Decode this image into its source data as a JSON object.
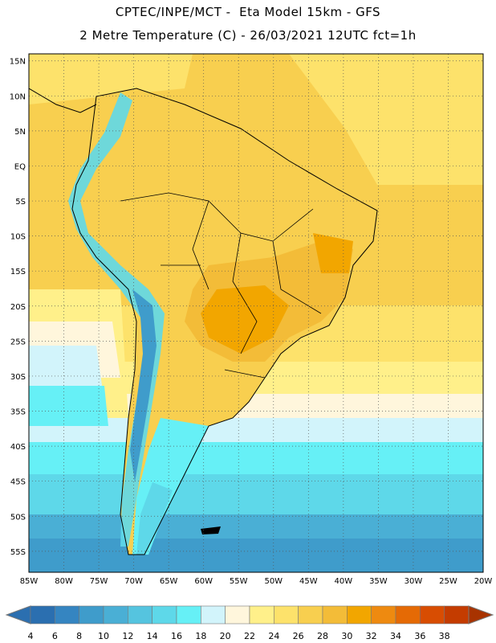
{
  "header": {
    "line1": "CPTEC/INPE/MCT -  Eta Model 15km - GFS",
    "line2": "2 Metre Temperature (C) - 26/03/2021 12UTC fct=1h"
  },
  "map": {
    "lon_range": [
      -85,
      -20
    ],
    "lat_range": [
      -58,
      16
    ],
    "lat_labels": [
      "15N",
      "10N",
      "5N",
      "EQ",
      "5S",
      "10S",
      "15S",
      "20S",
      "25S",
      "30S",
      "35S",
      "40S",
      "45S",
      "50S",
      "55S"
    ],
    "lat_values": [
      15,
      10,
      5,
      0,
      -5,
      -10,
      -15,
      -20,
      -25,
      -30,
      -35,
      -40,
      -45,
      -50,
      -55
    ],
    "lon_labels": [
      "85W",
      "80W",
      "75W",
      "70W",
      "65W",
      "60W",
      "55W",
      "50W",
      "45W",
      "40W",
      "35W",
      "30W",
      "25W",
      "20W"
    ],
    "lon_values": [
      -85,
      -80,
      -75,
      -70,
      -65,
      -60,
      -55,
      -50,
      -45,
      -40,
      -35,
      -30,
      -25,
      -20
    ],
    "grid": "dotted"
  },
  "legend": {
    "labels": [
      "4",
      "6",
      "8",
      "10",
      "12",
      "14",
      "16",
      "18",
      "20",
      "22",
      "24",
      "26",
      "28",
      "30",
      "32",
      "34",
      "36",
      "38"
    ],
    "colors": [
      "#2b6fb0",
      "#3585c1",
      "#3f9ccb",
      "#4aafd5",
      "#55c4df",
      "#5ed8e9",
      "#66f0f6",
      "#d2f4fb",
      "#fff6dc",
      "#fff08a",
      "#fde26b",
      "#f8cf4f",
      "#f3bc38",
      "#f2a600",
      "#ee8a10",
      "#e56a05",
      "#d84d02",
      "#c43c00"
    ]
  }
}
